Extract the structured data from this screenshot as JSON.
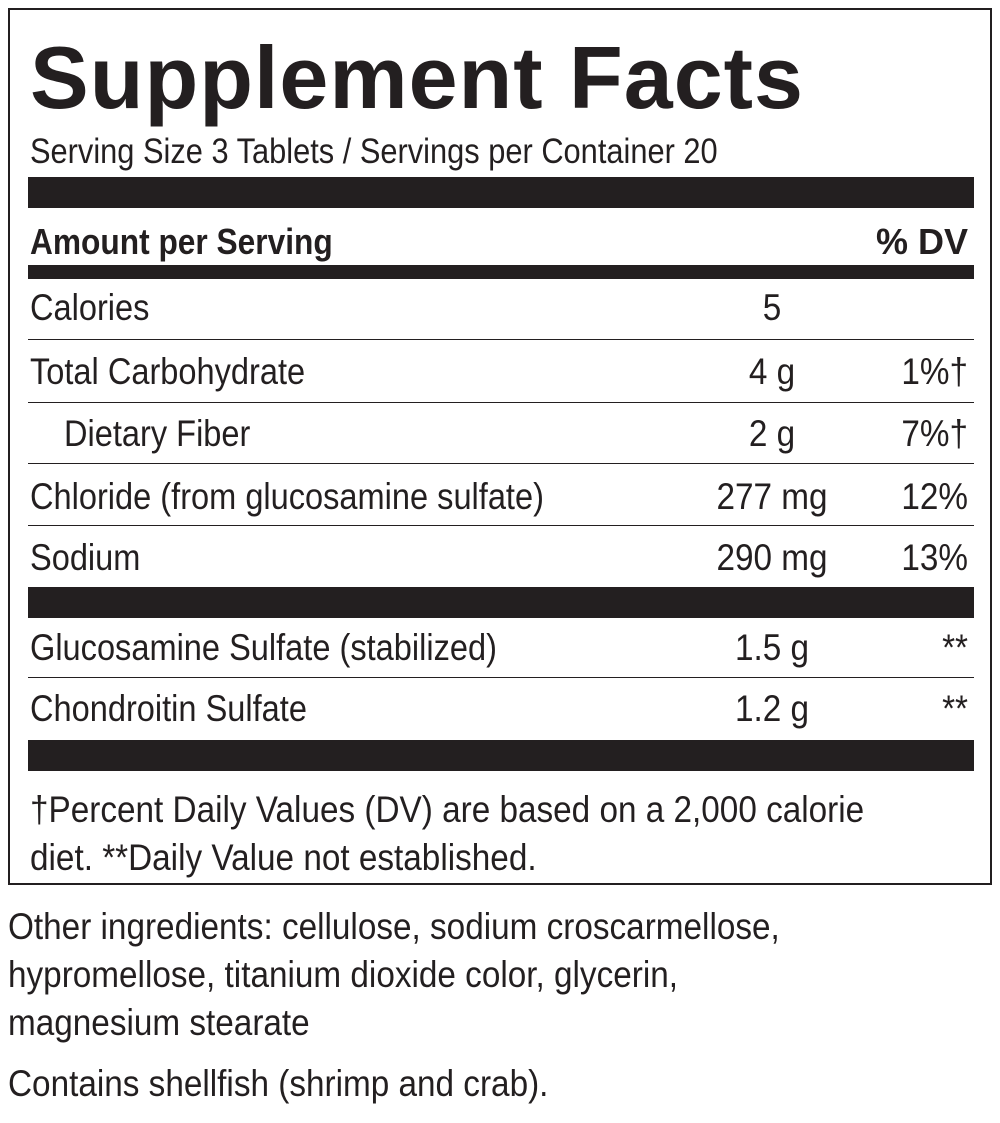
{
  "label": {
    "title": "Supplement Facts",
    "serving_line": "Serving Size 3 Tablets / Servings per Container 20",
    "header": {
      "amount": "Amount per Serving",
      "dv": "% DV"
    },
    "nutrients": [
      {
        "name": "Calories",
        "amount": "5",
        "dv": ""
      },
      {
        "name": "Total Carbohydrate",
        "amount": "4 g",
        "dv": "1%†"
      },
      {
        "name": "Dietary Fiber",
        "amount": "2 g",
        "dv": "7%†"
      },
      {
        "name": "Chloride (from glucosamine sulfate)",
        "amount": "277 mg",
        "dv": "12%"
      },
      {
        "name": "Sodium",
        "amount": "290 mg",
        "dv": "13%"
      }
    ],
    "ingredients": [
      {
        "name": "Glucosamine Sulfate (stabilized)",
        "amount": "1.5 g",
        "dv": "**"
      },
      {
        "name": "Chondroitin Sulfate",
        "amount": "1.2 g",
        "dv": "**"
      }
    ],
    "footnote_line1": "†Percent Daily Values (DV) are based on a 2,000 calorie",
    "footnote_line2": "diet. **Daily Value not established."
  },
  "other_ingredients": {
    "line1": "Other ingredients: cellulose, sodium croscarmellose,",
    "line2": "hypromellose, titanium dioxide color, glycerin,",
    "line3": "magnesium stearate"
  },
  "allergen": "Contains shellfish (shrimp and crab)."
}
